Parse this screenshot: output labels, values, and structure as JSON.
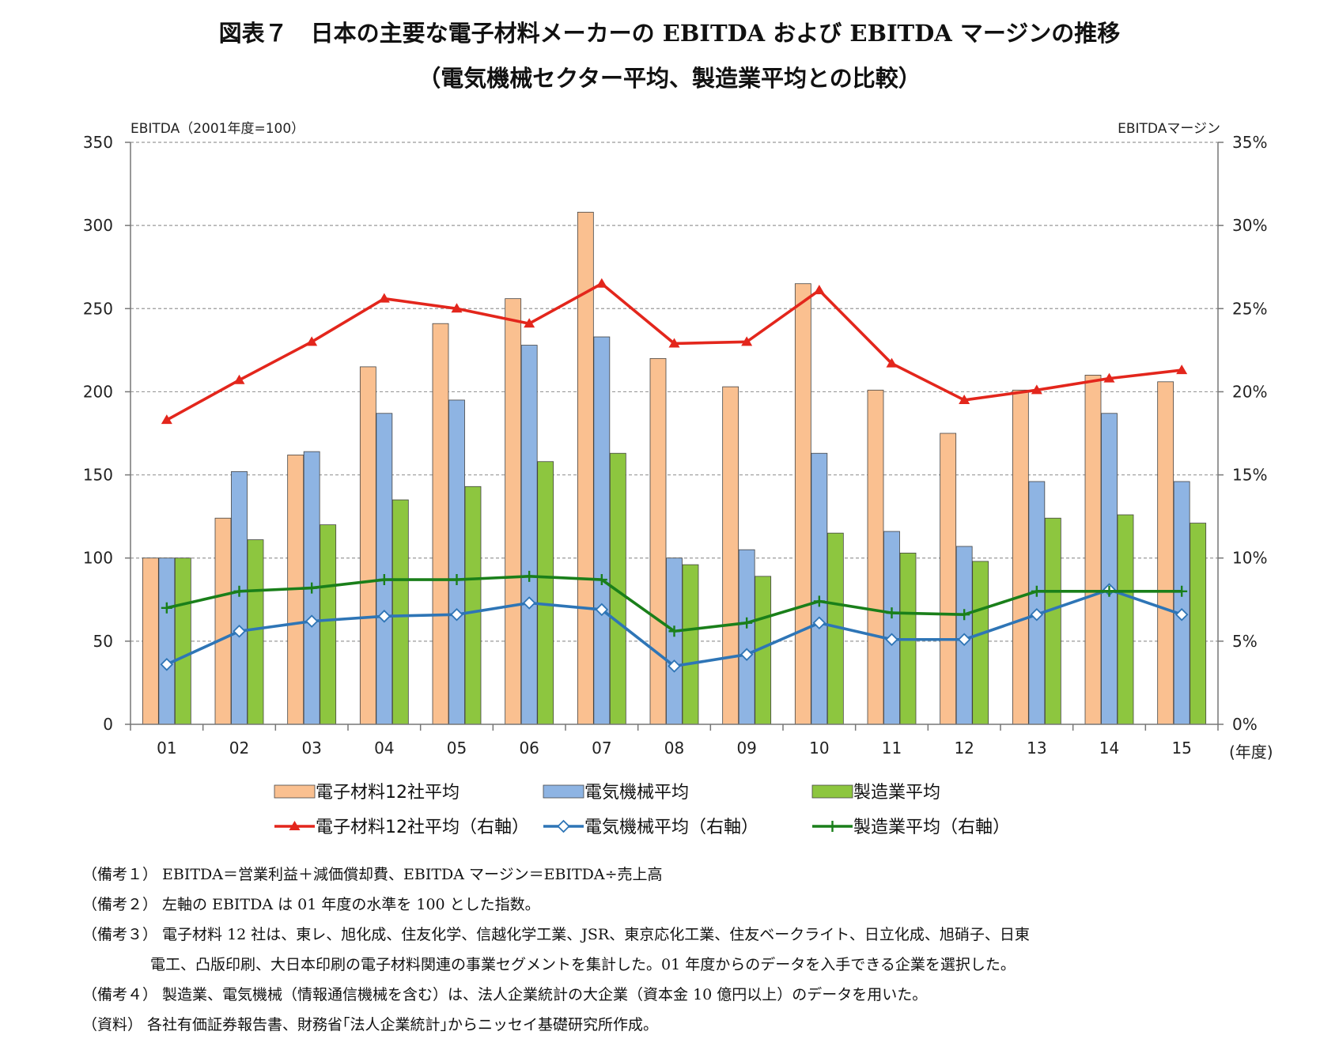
{
  "title": {
    "line1": "図表７　日本の主要な電子材料メーカーの EBITDA および EBITDA マージンの推移",
    "line2": "（電気機械セクター平均、製造業平均との比較）"
  },
  "chart_data": {
    "type": "bar",
    "left_axis_label": "EBITDA（2001年度=100）",
    "right_axis_label": "EBITDAマージン",
    "x_unit_label": "(年度)",
    "categories": [
      "01",
      "02",
      "03",
      "04",
      "05",
      "06",
      "07",
      "08",
      "09",
      "10",
      "11",
      "12",
      "13",
      "14",
      "15"
    ],
    "left_ylim": [
      0,
      350
    ],
    "left_ticks": [
      0,
      50,
      100,
      150,
      200,
      250,
      300,
      350
    ],
    "left_tick_labels": [
      "0",
      "50",
      "100",
      "150",
      "200",
      "250",
      "300",
      "350"
    ],
    "right_ylim": [
      0,
      35
    ],
    "right_ticks": [
      0,
      5,
      10,
      15,
      20,
      25,
      30,
      35
    ],
    "right_tick_labels": [
      "0%",
      "5%",
      "10%",
      "15%",
      "20%",
      "25%",
      "30%",
      "35%"
    ],
    "grid": "horizontal-dashed",
    "legend_position": "bottom",
    "series": [
      {
        "name": "電子材料12社平均",
        "type": "bar",
        "axis": "left",
        "color": "#FAC090",
        "values": [
          100,
          124,
          162,
          215,
          241,
          256,
          308,
          220,
          203,
          265,
          201,
          175,
          201,
          210,
          206
        ]
      },
      {
        "name": "電気機械平均",
        "type": "bar",
        "axis": "left",
        "color": "#8EB4E3",
        "values": [
          100,
          152,
          164,
          187,
          195,
          228,
          233,
          100,
          105,
          163,
          116,
          107,
          146,
          187,
          146
        ]
      },
      {
        "name": "製造業平均",
        "type": "bar",
        "axis": "left",
        "color": "#8DC63F",
        "values": [
          100,
          111,
          120,
          135,
          143,
          158,
          163,
          96,
          89,
          115,
          103,
          98,
          124,
          126,
          121
        ]
      },
      {
        "name": "電子材料12社平均（右軸）",
        "type": "line",
        "axis": "right",
        "color": "#E3261C",
        "marker": "triangle",
        "values": [
          18.3,
          20.7,
          23.0,
          25.6,
          25.0,
          24.1,
          26.5,
          22.9,
          23.0,
          26.1,
          21.7,
          19.5,
          20.1,
          20.8,
          21.3
        ]
      },
      {
        "name": "電気機械平均（右軸）",
        "type": "line",
        "axis": "right",
        "color": "#2E75B6",
        "marker": "diamond",
        "values": [
          3.6,
          5.6,
          6.2,
          6.5,
          6.6,
          7.3,
          6.9,
          3.5,
          4.2,
          6.1,
          5.1,
          5.1,
          6.6,
          8.1,
          6.6
        ]
      },
      {
        "name": "製造業平均（右軸）",
        "type": "line",
        "axis": "right",
        "color": "#1A7F1A",
        "marker": "plus",
        "values": [
          7.0,
          8.0,
          8.2,
          8.7,
          8.7,
          8.9,
          8.7,
          5.6,
          6.1,
          7.4,
          6.7,
          6.6,
          8.0,
          8.0,
          8.0
        ]
      }
    ]
  },
  "notes": [
    "（備考１） EBITDA＝営業利益＋減価償却費、EBITDA マージン＝EBITDA÷売上高",
    "（備考２） 左軸の EBITDA は 01 年度の水準を 100 とした指数。",
    "（備考３） 電子材料 12 社は、東レ、旭化成、住友化学、信越化学工業、JSR、東京応化工業、住友ベークライト、日立化成、旭硝子、日東",
    "電工、凸版印刷、大日本印刷の電子材料関連の事業セグメントを集計した。01 年度からのデータを入手できる企業を選択した。",
    "（備考４） 製造業、電気機械（情報通信機械を含む）は、法人企業統計の大企業（資本金 10 億円以上）のデータを用いた。",
    "（資料） 各社有価証券報告書、財務省｢法人企業統計｣からニッセイ基礎研究所作成。"
  ]
}
